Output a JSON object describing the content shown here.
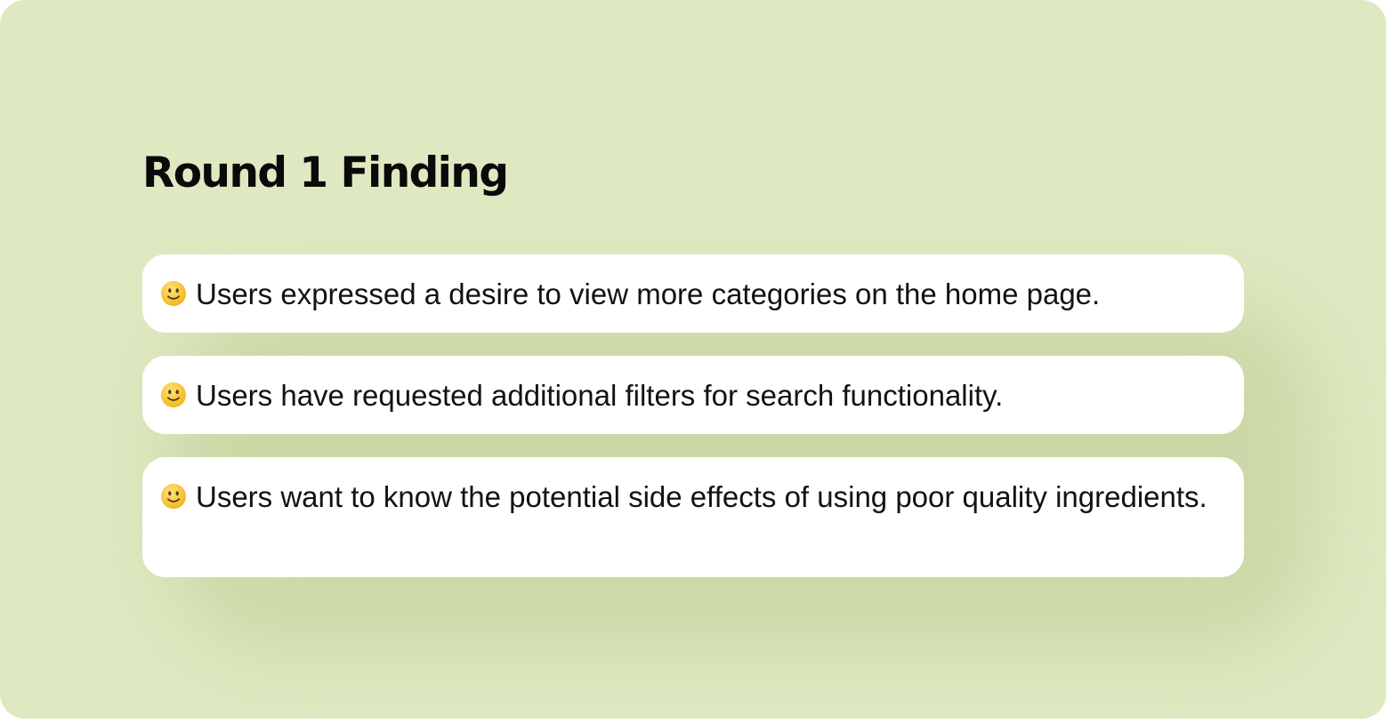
{
  "title": "Round 1 Finding",
  "findings": [
    {
      "icon": "slightly-smiling-face-icon",
      "text": "Users expressed a desire to view more categories on the home page."
    },
    {
      "icon": "slightly-smiling-face-icon",
      "text": "Users have requested additional filters for search functionality."
    },
    {
      "icon": "slightly-smiling-face-icon",
      "text": "Users want to know the potential side effects of using poor quality ingredients."
    }
  ],
  "colors": {
    "background": "#dfe9c1",
    "card": "#ffffff",
    "text": "#121212"
  }
}
